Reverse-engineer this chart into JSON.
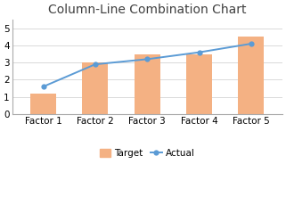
{
  "title": "Column-Line Combination Chart",
  "categories": [
    "Factor 1",
    "Factor 2",
    "Factor 3",
    "Factor 4",
    "Factor 5"
  ],
  "bar_values": [
    1.2,
    3.0,
    3.5,
    3.5,
    4.5
  ],
  "line_values": [
    1.6,
    2.9,
    3.2,
    3.6,
    4.1
  ],
  "bar_color": "#F4B183",
  "line_color": "#5B9BD5",
  "marker_face_color": "#5B9BD5",
  "marker_edge_color": "#5B9BD5",
  "grid_color": "#D9D9D9",
  "background_color": "#FFFFFF",
  "spine_color": "#AAAAAA",
  "ylim": [
    0,
    5.5
  ],
  "yticks": [
    0,
    1,
    2,
    3,
    4,
    5
  ],
  "legend_labels": [
    "Target",
    "Actual"
  ],
  "title_fontsize": 10,
  "tick_fontsize": 7.5,
  "legend_fontsize": 7.5
}
